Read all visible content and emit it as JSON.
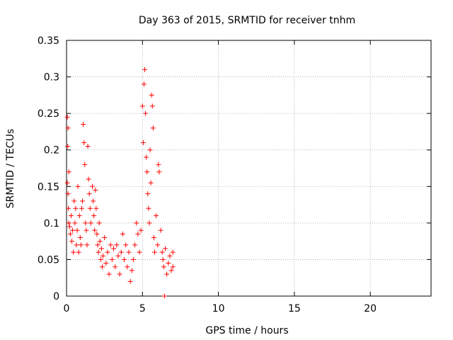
{
  "chart_data": {
    "type": "scatter",
    "title": "Day 363 of 2015, SRMTID for receiver tnhm",
    "xlabel": "GPS time / hours",
    "ylabel": "SRMTID / TECUs",
    "xlim": [
      0,
      24
    ],
    "ylim": [
      0,
      0.35
    ],
    "x_ticks": [
      0,
      5,
      10,
      15,
      20
    ],
    "x_tick_labels": [
      "0",
      "5",
      "10",
      "15",
      "20"
    ],
    "y_ticks": [
      0,
      0.05,
      0.1,
      0.15,
      0.2,
      0.25,
      0.3,
      0.35
    ],
    "y_tick_labels": [
      "0",
      "0.05",
      "0.1",
      "0.15",
      "0.2",
      "0.25",
      "0.3",
      "0.35"
    ],
    "grid": true,
    "marker": "+",
    "color": "#ff0000",
    "series": [
      {
        "name": "SRMTID",
        "points": [
          [
            0.05,
            0.245
          ],
          [
            0.1,
            0.23
          ],
          [
            0.08,
            0.205
          ],
          [
            0.15,
            0.17
          ],
          [
            0.05,
            0.155
          ],
          [
            0.1,
            0.14
          ],
          [
            0.12,
            0.12
          ],
          [
            0.15,
            0.1
          ],
          [
            0.2,
            0.095
          ],
          [
            0.25,
            0.085
          ],
          [
            0.3,
            0.11
          ],
          [
            0.35,
            0.075
          ],
          [
            0.4,
            0.09
          ],
          [
            0.45,
            0.06
          ],
          [
            0.5,
            0.13
          ],
          [
            0.55,
            0.1
          ],
          [
            0.6,
            0.12
          ],
          [
            0.65,
            0.07
          ],
          [
            0.7,
            0.09
          ],
          [
            0.75,
            0.15
          ],
          [
            0.8,
            0.06
          ],
          [
            0.85,
            0.11
          ],
          [
            0.9,
            0.08
          ],
          [
            0.95,
            0.07
          ],
          [
            1.0,
            0.12
          ],
          [
            1.05,
            0.13
          ],
          [
            1.1,
            0.235
          ],
          [
            1.15,
            0.21
          ],
          [
            1.2,
            0.18
          ],
          [
            1.25,
            0.1
          ],
          [
            1.3,
            0.09
          ],
          [
            1.35,
            0.07
          ],
          [
            1.4,
            0.205
          ],
          [
            1.45,
            0.16
          ],
          [
            1.5,
            0.14
          ],
          [
            1.55,
            0.12
          ],
          [
            1.6,
            0.1
          ],
          [
            1.7,
            0.15
          ],
          [
            1.75,
            0.13
          ],
          [
            1.8,
            0.11
          ],
          [
            1.85,
            0.09
          ],
          [
            1.9,
            0.145
          ],
          [
            1.95,
            0.12
          ],
          [
            2.0,
            0.085
          ],
          [
            2.05,
            0.07
          ],
          [
            2.1,
            0.06
          ],
          [
            2.15,
            0.1
          ],
          [
            2.2,
            0.075
          ],
          [
            2.25,
            0.05
          ],
          [
            2.3,
            0.065
          ],
          [
            2.35,
            0.04
          ],
          [
            2.4,
            0.055
          ],
          [
            2.5,
            0.08
          ],
          [
            2.6,
            0.045
          ],
          [
            2.7,
            0.06
          ],
          [
            2.8,
            0.03
          ],
          [
            2.9,
            0.07
          ],
          [
            3.0,
            0.05
          ],
          [
            3.1,
            0.065
          ],
          [
            3.2,
            0.04
          ],
          [
            3.3,
            0.07
          ],
          [
            3.4,
            0.055
          ],
          [
            3.5,
            0.03
          ],
          [
            3.6,
            0.06
          ],
          [
            3.7,
            0.085
          ],
          [
            3.8,
            0.05
          ],
          [
            3.9,
            0.07
          ],
          [
            4.0,
            0.04
          ],
          [
            4.1,
            0.06
          ],
          [
            4.2,
            0.02
          ],
          [
            4.3,
            0.035
          ],
          [
            4.4,
            0.05
          ],
          [
            4.5,
            0.07
          ],
          [
            4.6,
            0.1
          ],
          [
            4.7,
            0.085
          ],
          [
            4.8,
            0.06
          ],
          [
            4.9,
            0.09
          ],
          [
            5.0,
            0.26
          ],
          [
            5.05,
            0.21
          ],
          [
            5.1,
            0.29
          ],
          [
            5.15,
            0.31
          ],
          [
            5.2,
            0.25
          ],
          [
            5.25,
            0.19
          ],
          [
            5.3,
            0.17
          ],
          [
            5.35,
            0.14
          ],
          [
            5.4,
            0.12
          ],
          [
            5.45,
            0.1
          ],
          [
            5.5,
            0.2
          ],
          [
            5.55,
            0.155
          ],
          [
            5.6,
            0.275
          ],
          [
            5.65,
            0.26
          ],
          [
            5.7,
            0.23
          ],
          [
            5.75,
            0.08
          ],
          [
            5.8,
            0.06
          ],
          [
            5.9,
            0.11
          ],
          [
            6.0,
            0.07
          ],
          [
            6.05,
            0.18
          ],
          [
            6.1,
            0.17
          ],
          [
            6.2,
            0.09
          ],
          [
            6.3,
            0.06
          ],
          [
            6.35,
            0.05
          ],
          [
            6.4,
            0.04
          ],
          [
            6.45,
            0.0
          ],
          [
            6.5,
            0.065
          ],
          [
            6.6,
            0.03
          ],
          [
            6.7,
            0.045
          ],
          [
            6.8,
            0.055
          ],
          [
            6.9,
            0.035
          ],
          [
            7.0,
            0.06
          ],
          [
            7.0,
            0.04
          ]
        ]
      }
    ]
  }
}
